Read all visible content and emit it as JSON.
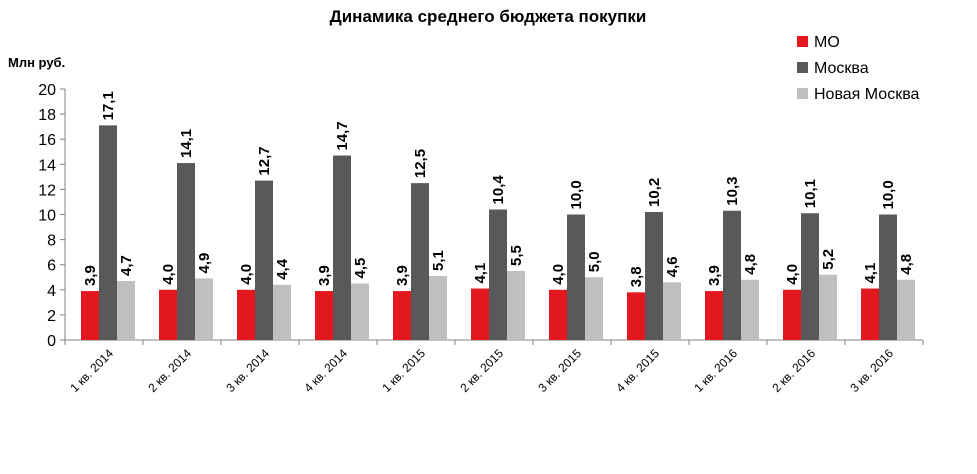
{
  "chart_data": {
    "type": "bar",
    "title": "Динамика среднего бюджета покупки",
    "ylabel": "Млн руб.",
    "xlabel": "",
    "ylim": [
      0,
      20
    ],
    "yticks": [
      "0",
      "2",
      "4",
      "6",
      "8",
      "10",
      "12",
      "14",
      "16",
      "18",
      "20"
    ],
    "grid": false,
    "legend_position": "top-right",
    "categories": [
      "1 кв. 2014",
      "2 кв. 2014",
      "3 кв. 2014",
      "4 кв. 2014",
      "1 кв. 2015",
      "2 кв. 2015",
      "3 кв. 2015",
      "4 кв. 2015",
      "1 кв. 2016",
      "2 кв. 2016",
      "3 кв. 2016"
    ],
    "series": [
      {
        "name": "МО",
        "color": "#e3181e",
        "values": [
          3.9,
          4.0,
          4.0,
          3.9,
          3.9,
          4.1,
          4.0,
          3.8,
          3.9,
          4.0,
          4.1
        ],
        "labels": [
          "3,9",
          "4,0",
          "4,0",
          "3,9",
          "3,9",
          "4,1",
          "4,0",
          "3,8",
          "3,9",
          "4,0",
          "4,1"
        ]
      },
      {
        "name": "Москва",
        "color": "#595959",
        "values": [
          17.1,
          14.1,
          12.7,
          14.7,
          12.5,
          10.4,
          10.0,
          10.2,
          10.3,
          10.1,
          10.0
        ],
        "labels": [
          "17,1",
          "14,1",
          "12,7",
          "14,7",
          "12,5",
          "10,4",
          "10,0",
          "10,2",
          "10,3",
          "10,1",
          "10,0"
        ]
      },
      {
        "name": "Новая Москва",
        "color": "#bfbfbf",
        "values": [
          4.7,
          4.9,
          4.4,
          4.5,
          5.1,
          5.5,
          5.0,
          4.6,
          4.8,
          5.2,
          4.8
        ],
        "labels": [
          "4,7",
          "4,9",
          "4,4",
          "4,5",
          "5,1",
          "5,5",
          "5,0",
          "4,6",
          "4,8",
          "5,2",
          "4,8"
        ]
      }
    ]
  }
}
